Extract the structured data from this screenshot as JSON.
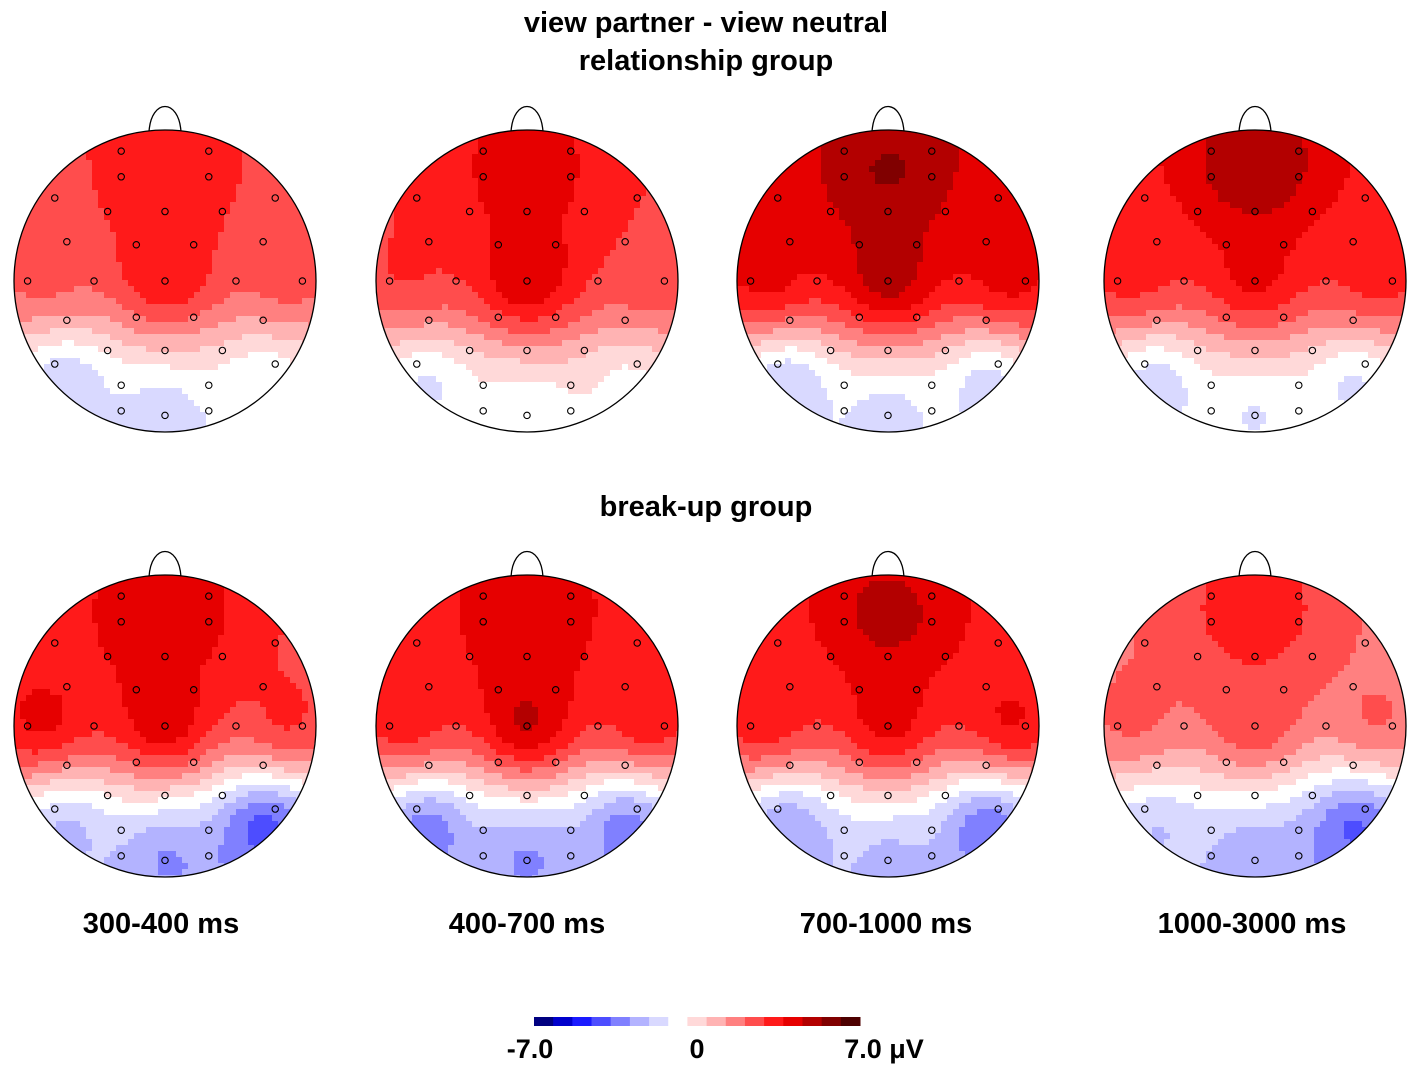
{
  "figure": {
    "title_line1": "view partner - view neutral",
    "title_line2": "relationship group",
    "group2_title": "break-up group"
  },
  "time_windows": [
    "300-400 ms",
    "400-700 ms",
    "700-1000 ms",
    "1000-3000 ms"
  ],
  "colorbar": {
    "min_label": "-7.0",
    "zero_label": "0",
    "max_label": "7.0 μV",
    "colors": [
      "#000080",
      "#0000cc",
      "#1a1aff",
      "#4d4dff",
      "#8080ff",
      "#b3b3ff",
      "#d9d9ff",
      "#ffffff",
      "#ffd9d9",
      "#ffb3b3",
      "#ff8080",
      "#ff4d4d",
      "#ff1a1a",
      "#e60000",
      "#b30000",
      "#800000",
      "#4d0000"
    ]
  },
  "topomaps": [
    {
      "group": "relationship group",
      "window": "300-400 ms",
      "front": 4,
      "center": 5,
      "back": -2.5,
      "left": 3,
      "right": 3,
      "back_left": -3,
      "back_right": -2
    },
    {
      "group": "relationship group",
      "window": "400-700 ms",
      "front": 4.5,
      "center": 6,
      "back": -2,
      "left": 3.5,
      "right": 3,
      "back_left": -2.5,
      "back_right": -1.5
    },
    {
      "group": "relationship group",
      "window": "700-1000 ms",
      "front": 6,
      "center": 6.5,
      "back": -2.5,
      "left": 5,
      "right": 5,
      "back_left": -3.5,
      "back_right": -3
    },
    {
      "group": "relationship group",
      "window": "1000-3000 ms",
      "front": 6,
      "center": 5,
      "back": -2,
      "left": 4,
      "right": 4,
      "back_left": -3,
      "back_right": -2.5
    },
    {
      "group": "break-up group",
      "window": "300-400 ms",
      "front": 5,
      "center": 6,
      "back": -4,
      "left": 5,
      "right": 4,
      "back_left": -3.5,
      "back_right": -6
    },
    {
      "group": "break-up group",
      "window": "400-700 ms",
      "front": 5,
      "center": 6.5,
      "back": -4,
      "left": 4.5,
      "right": 4.5,
      "back_left": -5,
      "back_right": -5
    },
    {
      "group": "break-up group",
      "window": "700-1000 ms",
      "front": 5.5,
      "center": 5.5,
      "back": -3,
      "left": 4.5,
      "right": 5,
      "back_left": -4.5,
      "back_right": -5.5
    },
    {
      "group": "break-up group",
      "window": "1000-3000 ms",
      "front": 4,
      "center": 4,
      "back": -3.5,
      "left": 3,
      "right": 3,
      "back_left": -3,
      "back_right": -5.5
    }
  ]
}
